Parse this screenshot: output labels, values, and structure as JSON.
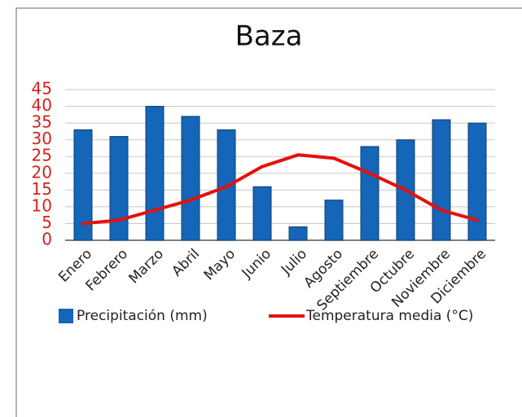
{
  "chart_data": {
    "type": "bar",
    "title": "Baza",
    "categories": [
      "Enero",
      "Febrero",
      "Marzo",
      "Abril",
      "Mayo",
      "Junio",
      "Julio",
      "Agosto",
      "Septiembre",
      "Octubre",
      "Noviembre",
      "Diciembre"
    ],
    "series": [
      {
        "name": "Precipitación (mm)",
        "type": "bar",
        "color": "#1565b8",
        "values": [
          33,
          31,
          40,
          37,
          33,
          16,
          4,
          12,
          28,
          30,
          36,
          35
        ]
      },
      {
        "name": "Temperatura media (°C)",
        "type": "line",
        "color": "#e3120b",
        "values": [
          5,
          6,
          9,
          12,
          16,
          22,
          25.5,
          24.5,
          20,
          15,
          9,
          6
        ]
      }
    ],
    "ylim": [
      0,
      45
    ],
    "yticks": [
      0,
      5,
      10,
      15,
      20,
      25,
      30,
      35,
      40,
      45
    ],
    "ytick_color": "#d62020",
    "grid": true,
    "legend": "bottom"
  }
}
